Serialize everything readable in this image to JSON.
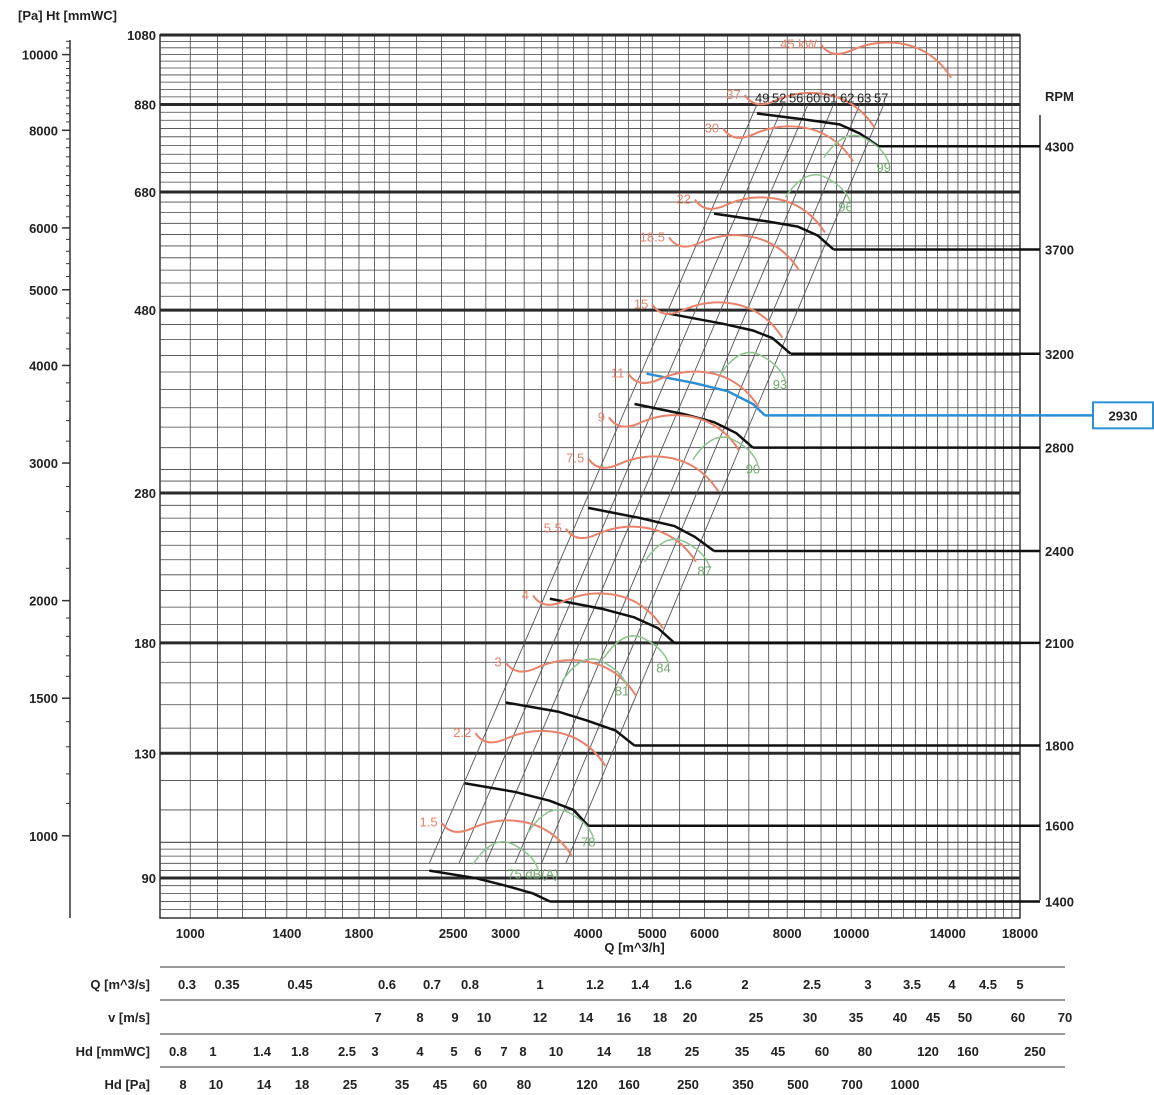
{
  "chart_data": {
    "type": "line",
    "title": "",
    "xlabel": "Q [m^3/h]",
    "ylabel_left": "[Pa]",
    "ylabel_mid": "Ht [mmWC]",
    "rpm_label": "RPM",
    "x_scale": "log",
    "y_scale": "log",
    "xlim": [
      900,
      18000
    ],
    "ylim_mmwc": [
      80,
      1080
    ],
    "x_ticks": [
      1000,
      1400,
      1800,
      2500,
      3000,
      4000,
      5000,
      6000,
      8000,
      10000,
      14000,
      18000
    ],
    "y_ticks_mmwc": [
      1080,
      880,
      680,
      480,
      280,
      180,
      130,
      90
    ],
    "y_ticks_pa": [
      10000,
      8000,
      6000,
      5000,
      4000,
      3000,
      2000,
      1500,
      1000
    ],
    "rpm_curves": [
      {
        "rpm": 4300,
        "points": [
          [
            7200,
            857
          ],
          [
            8500,
            842
          ],
          [
            9600,
            830
          ],
          [
            10300,
            808
          ],
          [
            11000,
            778
          ]
        ]
      },
      {
        "rpm": 3700,
        "points": [
          [
            6200,
            638
          ],
          [
            7500,
            623
          ],
          [
            8300,
            614
          ],
          [
            8900,
            598
          ],
          [
            9400,
            574
          ]
        ]
      },
      {
        "rpm": 3200,
        "points": [
          [
            5300,
            475
          ],
          [
            6400,
            461
          ],
          [
            7100,
            452
          ],
          [
            7600,
            442
          ],
          [
            8100,
            422
          ]
        ]
      },
      {
        "rpm": 2930,
        "highlight": true,
        "points": [
          [
            4900,
            398
          ],
          [
            5800,
            387
          ],
          [
            6500,
            378
          ],
          [
            7100,
            364
          ],
          [
            7400,
            352
          ]
        ]
      },
      {
        "rpm": 2800,
        "points": [
          [
            4700,
            364
          ],
          [
            5600,
            353
          ],
          [
            6200,
            345
          ],
          [
            6700,
            334
          ],
          [
            7100,
            320
          ]
        ]
      },
      {
        "rpm": 2400,
        "points": [
          [
            4000,
            268
          ],
          [
            4800,
            260
          ],
          [
            5400,
            254
          ],
          [
            5800,
            246
          ],
          [
            6200,
            236
          ]
        ]
      },
      {
        "rpm": 2100,
        "points": [
          [
            3500,
            205
          ],
          [
            4200,
            199
          ],
          [
            4700,
            194
          ],
          [
            5100,
            188
          ],
          [
            5400,
            180
          ]
        ]
      },
      {
        "rpm": 1800,
        "points": [
          [
            3000,
            151
          ],
          [
            3600,
            147
          ],
          [
            4000,
            143
          ],
          [
            4400,
            139
          ],
          [
            4700,
            133
          ]
        ]
      },
      {
        "rpm": 1600,
        "points": [
          [
            2600,
            119
          ],
          [
            3100,
            116
          ],
          [
            3500,
            113
          ],
          [
            3800,
            110
          ],
          [
            4000,
            105
          ]
        ]
      },
      {
        "rpm": 1400,
        "points": [
          [
            2300,
            92
          ],
          [
            2700,
            90
          ],
          [
            3000,
            88
          ],
          [
            3300,
            86
          ],
          [
            3500,
            84
          ]
        ]
      }
    ],
    "power_labels": [
      "45 kW",
      "37",
      "30",
      "22",
      "18.5",
      "15",
      "11",
      "9",
      "7.5",
      "5.5",
      "4",
      "3",
      "2.2",
      "1.5"
    ],
    "power_sublabels": [
      "49",
      "52",
      "56",
      "60",
      "61",
      "62",
      "63",
      "57"
    ],
    "noise_labels": [
      "99",
      "96",
      "93",
      "90",
      "87",
      "84",
      "81",
      "78",
      "75 dB(A)"
    ],
    "rpm_highlight_label": "2930",
    "bottom_scales": [
      {
        "label": "Q [m^3/s]",
        "ticks": [
          "0.3",
          "0.35",
          "0.45",
          "0.6",
          "0.7",
          "0.8",
          "1",
          "1.2",
          "1.4",
          "1.6",
          "2",
          "2.5",
          "3",
          "3.5",
          "4",
          "4.5",
          "5"
        ]
      },
      {
        "label": "v [m/s]",
        "ticks": [
          "7",
          "8",
          "9",
          "10",
          "12",
          "14",
          "16",
          "18",
          "20",
          "25",
          "30",
          "35",
          "40",
          "45",
          "50",
          "60",
          "70"
        ]
      },
      {
        "label": "Hd [mmWC]",
        "ticks": [
          "0.8",
          "1",
          "1.4",
          "1.8",
          "2.5",
          "3",
          "4",
          "5",
          "6",
          "7",
          "8",
          "10",
          "14",
          "18",
          "25",
          "35",
          "45",
          "60",
          "80",
          "120",
          "160",
          "250"
        ]
      },
      {
        "label": "Hd [Pa]",
        "ticks": [
          "8",
          "10",
          "14",
          "18",
          "25",
          "35",
          "45",
          "60",
          "80",
          "120",
          "160",
          "250",
          "350",
          "500",
          "700",
          "1000"
        ]
      }
    ],
    "grid": true
  }
}
